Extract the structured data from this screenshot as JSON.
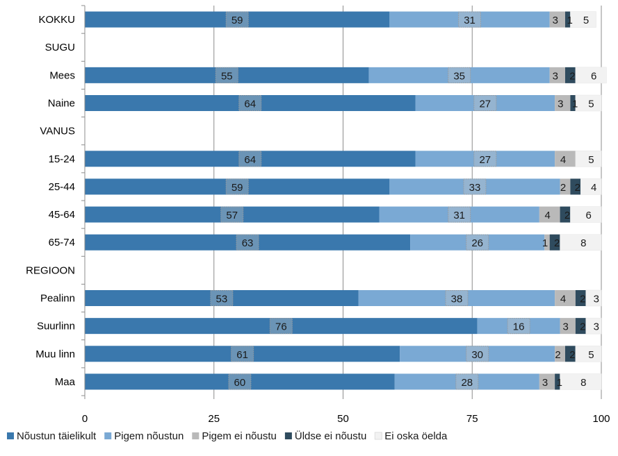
{
  "chart_data": {
    "type": "bar",
    "orientation": "horizontal",
    "stacked": true,
    "categories": [
      "KOKKU",
      "SUGU",
      "Mees",
      "Naine",
      "VANUS",
      "15-24",
      "25-44",
      "45-64",
      "65-74",
      "REGIOON",
      "Pealinn",
      "Suurlinn",
      "Muu linn",
      "Maa"
    ],
    "series": [
      {
        "name": "Nõustun täielikult",
        "color": "#3a78ad",
        "values": [
          59,
          null,
          55,
          64,
          null,
          64,
          59,
          57,
          63,
          null,
          53,
          76,
          61,
          60
        ]
      },
      {
        "name": "Pigem nõustun",
        "color": "#7aa9d4",
        "values": [
          31,
          null,
          35,
          27,
          null,
          27,
          33,
          31,
          26,
          null,
          38,
          16,
          30,
          28
        ]
      },
      {
        "name": "Pigem ei nõustu",
        "color": "#b9b9b9",
        "values": [
          3,
          null,
          3,
          3,
          null,
          4,
          2,
          4,
          1,
          null,
          4,
          3,
          2,
          3
        ]
      },
      {
        "name": "Üldse ei nõustu",
        "color": "#2f4b5e",
        "values": [
          1,
          null,
          2,
          1,
          null,
          0,
          2,
          2,
          2,
          null,
          2,
          2,
          2,
          1
        ]
      },
      {
        "name": "Ei oska öelda",
        "color": "#f2f2f2",
        "values": [
          5,
          null,
          6,
          5,
          null,
          5,
          4,
          6,
          8,
          null,
          3,
          3,
          5,
          8
        ]
      }
    ],
    "xlim": [
      0,
      100
    ],
    "xticks": [
      "0",
      "25",
      "50",
      "75",
      "100"
    ],
    "grid": "vertical",
    "legend": "bottom"
  }
}
